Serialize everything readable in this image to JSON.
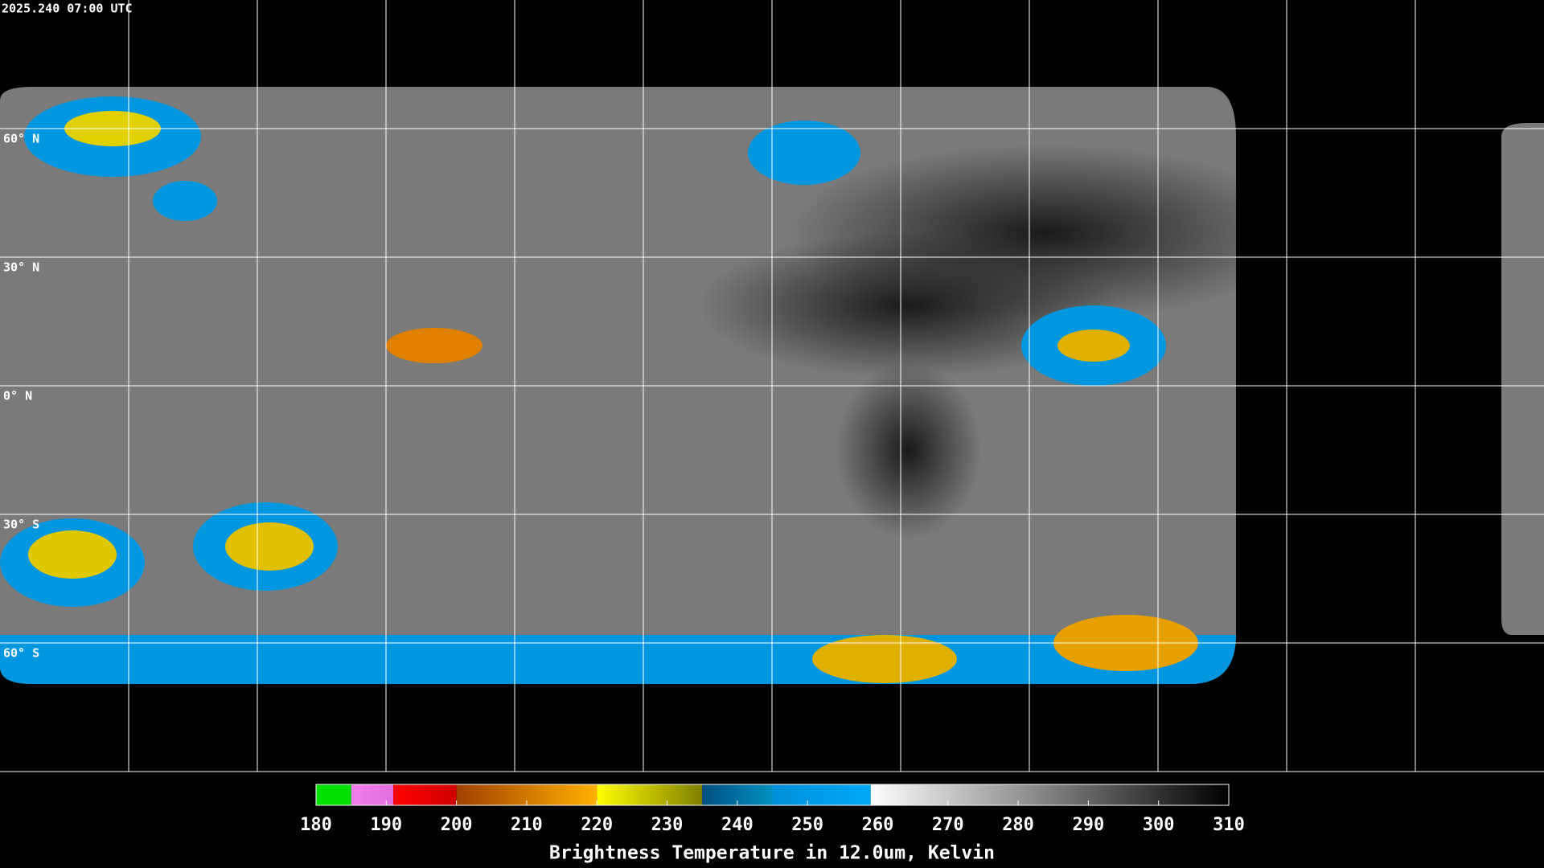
{
  "header": {
    "timestamp": "2025.240 07:00 UTC"
  },
  "map": {
    "lat_labels": [
      {
        "value": 60,
        "label": "60° N"
      },
      {
        "value": 30,
        "label": "30° N"
      },
      {
        "value": 0,
        "label": "0° N"
      },
      {
        "value": -30,
        "label": "30° S"
      },
      {
        "value": -60,
        "label": "60° S"
      }
    ]
  },
  "colorbar": {
    "range": [
      180,
      310
    ],
    "ticks": [
      180,
      190,
      200,
      210,
      220,
      230,
      240,
      250,
      260,
      270,
      280,
      290,
      300,
      310
    ],
    "segments": [
      {
        "from": 180,
        "to": 185,
        "colors": [
          "#00e000",
          "#00e000"
        ]
      },
      {
        "from": 185,
        "to": 191,
        "colors": [
          "#f080f0",
          "#e070e0"
        ]
      },
      {
        "from": 191,
        "to": 200,
        "colors": [
          "#ff0000",
          "#d00000"
        ]
      },
      {
        "from": 200,
        "to": 220,
        "colors": [
          "#a04000",
          "#ffb000"
        ]
      },
      {
        "from": 220,
        "to": 235,
        "colors": [
          "#ffff00",
          "#808000"
        ]
      },
      {
        "from": 235,
        "to": 245,
        "colors": [
          "#005080",
          "#0090c0"
        ]
      },
      {
        "from": 245,
        "to": 259,
        "colors": [
          "#0090d8",
          "#00a8f8"
        ]
      },
      {
        "from": 259,
        "to": 310,
        "colors": [
          "#ffffff",
          "#000000"
        ]
      }
    ],
    "label": "Brightness Temperature in 12.0um, Kelvin"
  }
}
